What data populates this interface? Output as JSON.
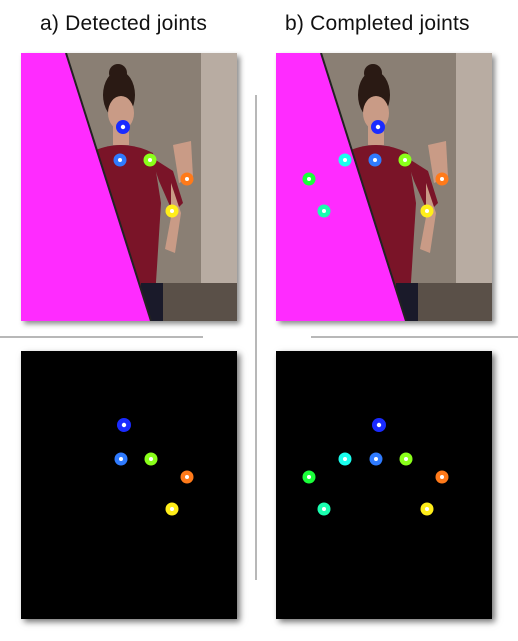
{
  "headings": {
    "detected": "a) Detected joints",
    "completed": "b) Completed joints"
  },
  "colors": {
    "occluder": "#ff2bff",
    "background_wall": "#8a7f74",
    "shirt": "#7a1428",
    "skin": "#c99b86",
    "hair": "#2a1a14",
    "black_panel": "#000000"
  },
  "joints": {
    "detected": [
      {
        "name": "nose",
        "color": "#1a2bff"
      },
      {
        "name": "neck",
        "color": "#2f7bff"
      },
      {
        "name": "left-shoulder",
        "color": "#8aff1a"
      },
      {
        "name": "left-elbow",
        "color": "#ff7a1a"
      },
      {
        "name": "left-wrist",
        "color": "#ffee1a"
      }
    ],
    "completed": [
      {
        "name": "nose",
        "color": "#1a2bff"
      },
      {
        "name": "neck",
        "color": "#2f7bff"
      },
      {
        "name": "left-shoulder",
        "color": "#8aff1a"
      },
      {
        "name": "left-elbow",
        "color": "#ff7a1a"
      },
      {
        "name": "left-wrist",
        "color": "#ffee1a"
      },
      {
        "name": "right-shoulder",
        "color": "#1affee"
      },
      {
        "name": "right-elbow",
        "color": "#1aff3a"
      },
      {
        "name": "right-wrist",
        "color": "#1affb0"
      }
    ]
  }
}
